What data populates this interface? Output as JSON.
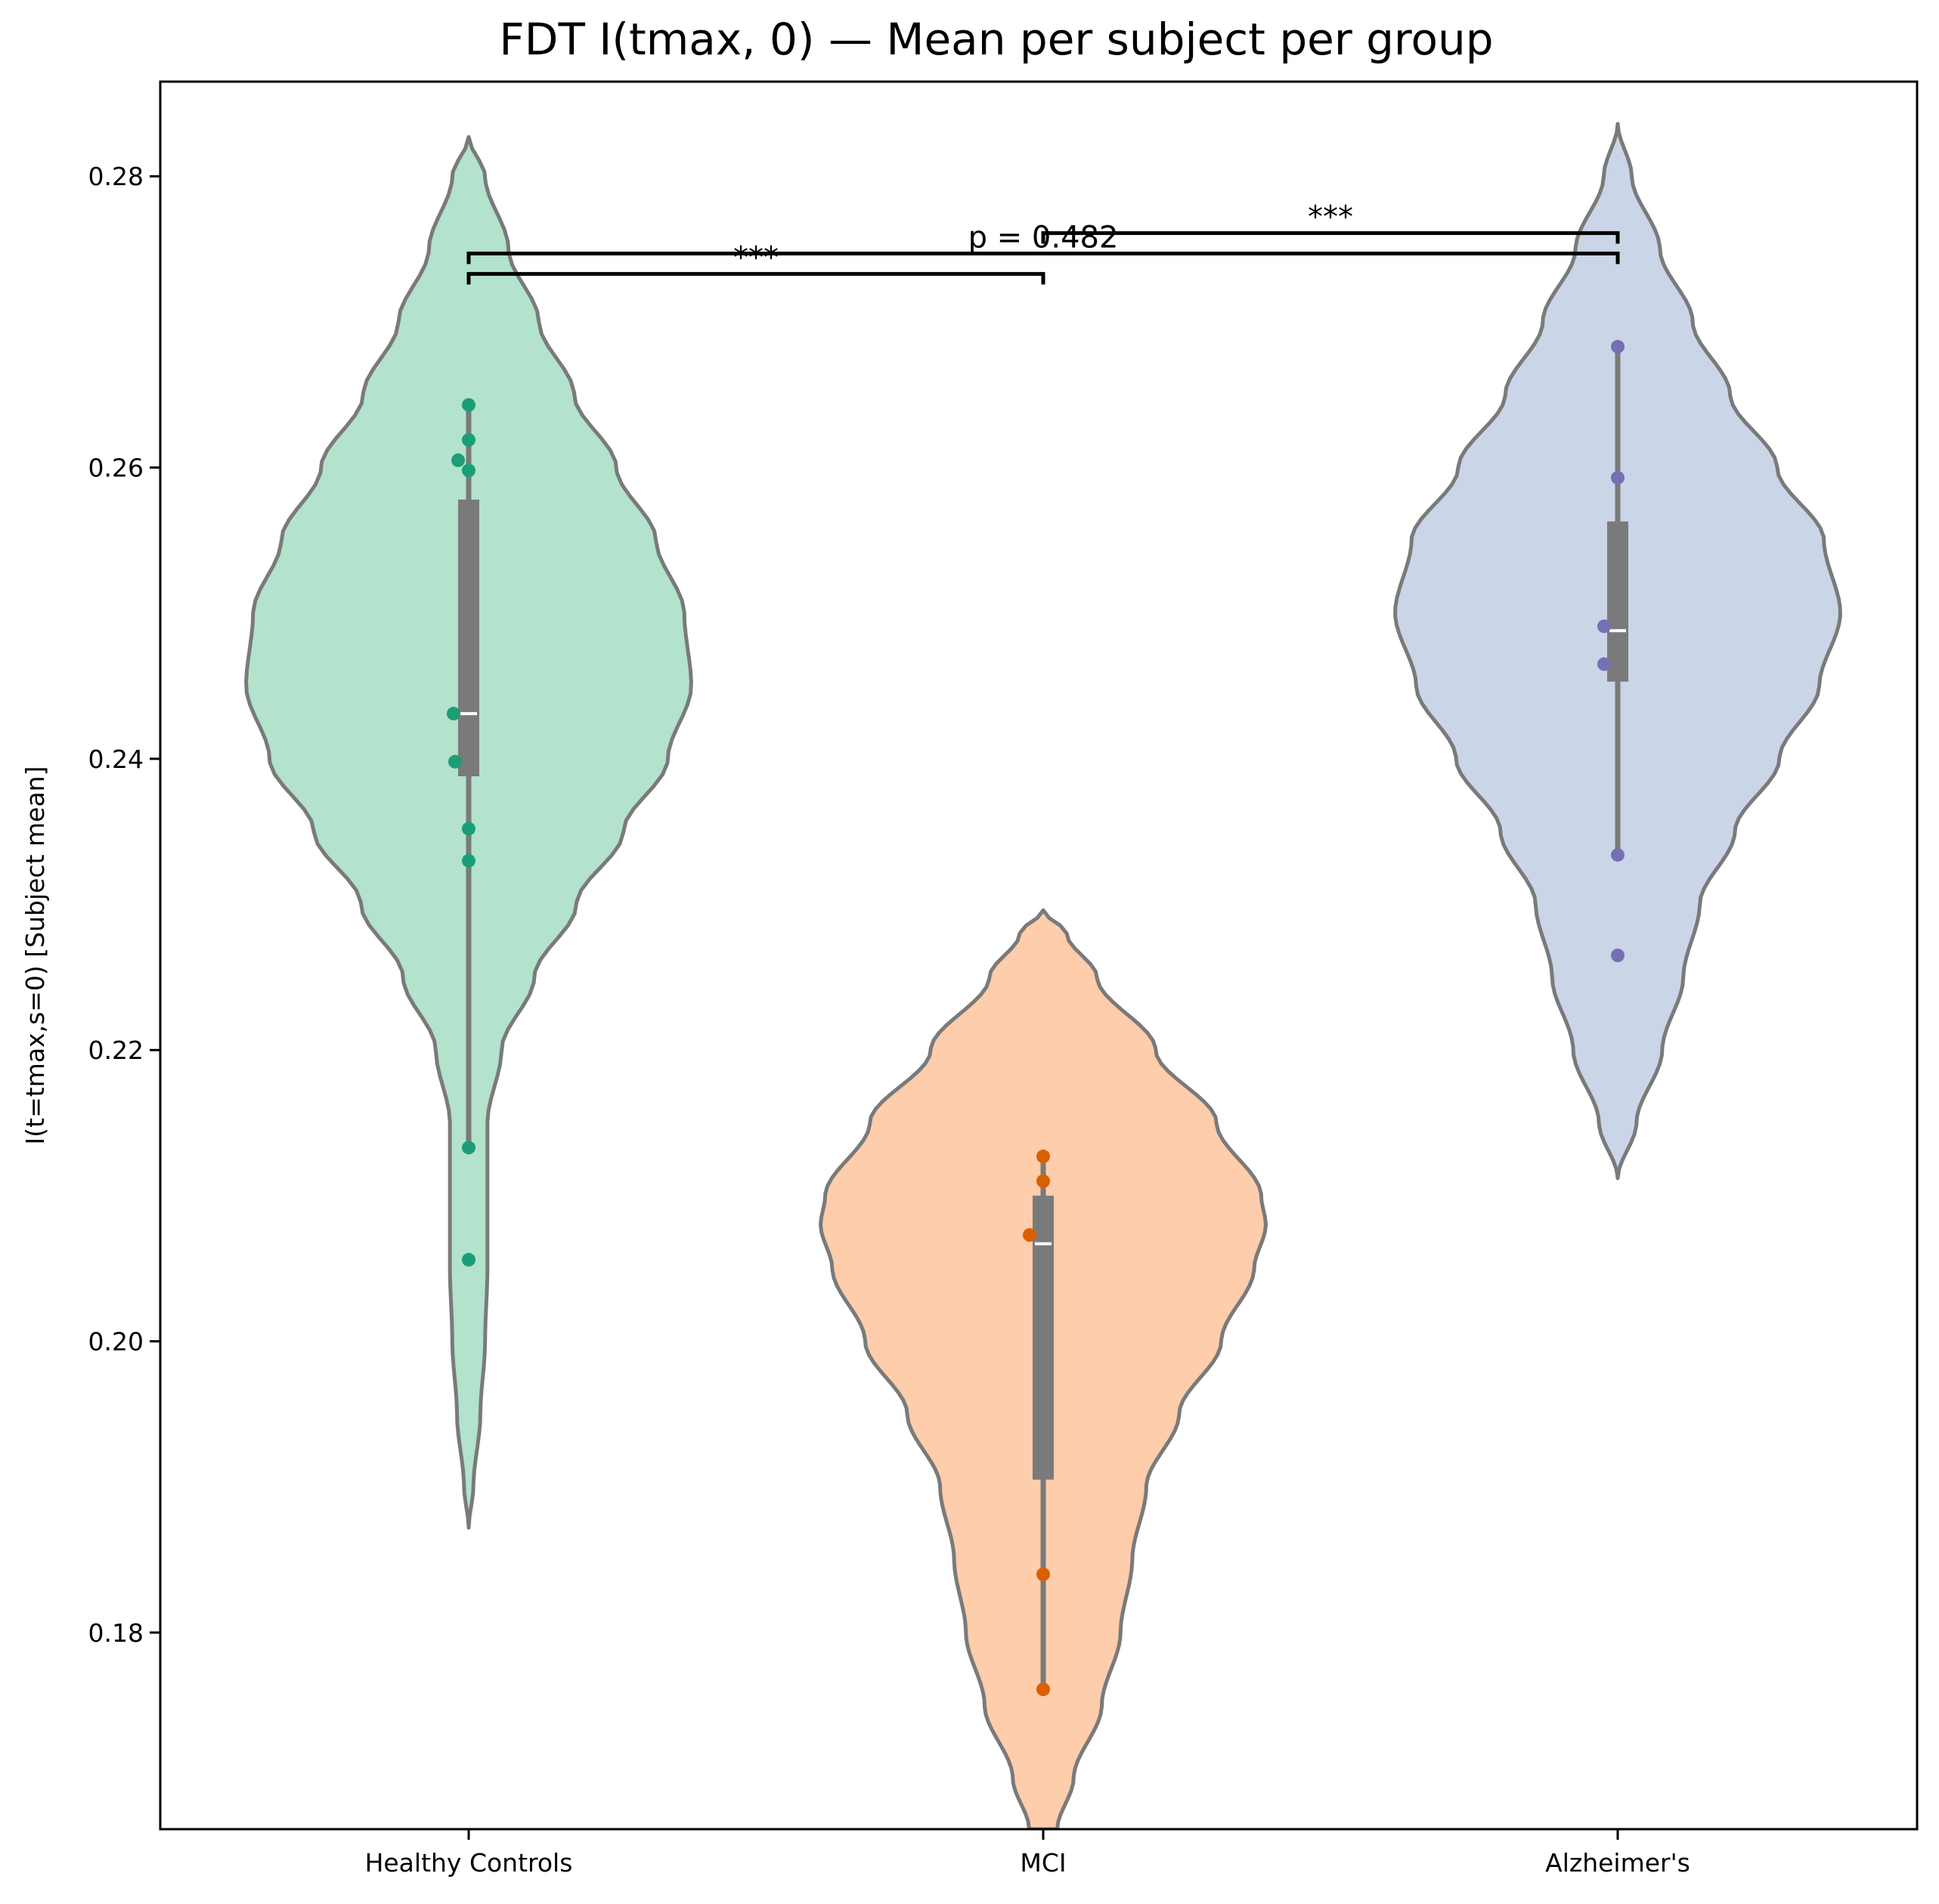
{
  "chart_data": {
    "type": "violin",
    "title": "FDT I(tmax, 0) — Mean per subject per group",
    "xlabel": "",
    "ylabel": "I(t=tmax,s=0) [Subject mean]",
    "ylim": [
      0.1665,
      0.2865
    ],
    "yticks": [
      0.18,
      0.2,
      0.22,
      0.24,
      0.26,
      0.28
    ],
    "ytick_labels": [
      "0.18",
      "0.20",
      "0.22",
      "0.24",
      "0.26",
      "0.28"
    ],
    "categories": [
      "Healthy Controls",
      "MCI",
      "Alzheimer's"
    ],
    "grid": false,
    "series": [
      {
        "fill": "#b3e2cd",
        "point_color": "#1b9e77",
        "points": [
          0.2643,
          0.2619,
          0.2605,
          0.2598,
          0.2431,
          0.2398,
          0.2352,
          0.233,
          0.2133,
          0.2056
        ],
        "box": {
          "q1": 0.2388,
          "median": 0.2431,
          "q3": 0.2578,
          "whisker_low": 0.2133,
          "whisker_high": 0.2643
        },
        "violin_range": [
          0.1872,
          0.2827
        ],
        "violin_profile": [
          [
            0.1872,
            0.0
          ],
          [
            0.19,
            0.02
          ],
          [
            0.195,
            0.05
          ],
          [
            0.2,
            0.07
          ],
          [
            0.205,
            0.08
          ],
          [
            0.21,
            0.08
          ],
          [
            0.213,
            0.08
          ],
          [
            0.215,
            0.08
          ],
          [
            0.22,
            0.14
          ],
          [
            0.225,
            0.28
          ],
          [
            0.23,
            0.46
          ],
          [
            0.235,
            0.66
          ],
          [
            0.24,
            0.85
          ],
          [
            0.245,
            0.95
          ],
          [
            0.25,
            0.92
          ],
          [
            0.255,
            0.8
          ],
          [
            0.26,
            0.63
          ],
          [
            0.265,
            0.45
          ],
          [
            0.27,
            0.3
          ],
          [
            0.275,
            0.17
          ],
          [
            0.28,
            0.07
          ],
          [
            0.2827,
            0.0
          ]
        ]
      },
      {
        "fill": "#fdcdac",
        "point_color": "#d95f02",
        "points": [
          0.2127,
          0.211,
          0.2073,
          0.184,
          0.1761
        ],
        "box": {
          "q1": 0.1905,
          "median": 0.2067,
          "q3": 0.21,
          "whisker_low": 0.1761,
          "whisker_high": 0.2127
        },
        "violin_range": [
          0.1665,
          0.2296
        ],
        "violin_profile": [
          [
            0.1665,
            0.06
          ],
          [
            0.17,
            0.13
          ],
          [
            0.175,
            0.25
          ],
          [
            0.18,
            0.33
          ],
          [
            0.185,
            0.38
          ],
          [
            0.19,
            0.44
          ],
          [
            0.195,
            0.58
          ],
          [
            0.2,
            0.76
          ],
          [
            0.205,
            0.9
          ],
          [
            0.208,
            0.95
          ],
          [
            0.21,
            0.93
          ],
          [
            0.215,
            0.74
          ],
          [
            0.22,
            0.48
          ],
          [
            0.225,
            0.23
          ],
          [
            0.228,
            0.1
          ],
          [
            0.2296,
            0.0
          ]
        ]
      },
      {
        "fill": "#cbd5e8",
        "point_color": "#7570b3",
        "points": [
          0.2683,
          0.2593,
          0.2491,
          0.2465,
          0.2334,
          0.2265
        ],
        "box": {
          "q1": 0.2453,
          "median": 0.2488,
          "q3": 0.2563,
          "whisker_low": 0.2334,
          "whisker_high": 0.2683
        },
        "violin_range": [
          0.2112,
          0.2836
        ],
        "violin_profile": [
          [
            0.2112,
            0.0
          ],
          [
            0.215,
            0.08
          ],
          [
            0.22,
            0.19
          ],
          [
            0.225,
            0.28
          ],
          [
            0.23,
            0.35
          ],
          [
            0.235,
            0.5
          ],
          [
            0.24,
            0.69
          ],
          [
            0.245,
            0.86
          ],
          [
            0.25,
            0.95
          ],
          [
            0.255,
            0.88
          ],
          [
            0.26,
            0.68
          ],
          [
            0.265,
            0.48
          ],
          [
            0.27,
            0.32
          ],
          [
            0.275,
            0.18
          ],
          [
            0.28,
            0.06
          ],
          [
            0.2836,
            0.0
          ]
        ]
      }
    ],
    "annotations": [
      {
        "from": 0,
        "to": 1,
        "y": 0.2733,
        "label": "***"
      },
      {
        "from": 0,
        "to": 2,
        "y": 0.2747,
        "label": "p = 0.482"
      },
      {
        "from": 1,
        "to": 2,
        "y": 0.2761,
        "label": "***"
      }
    ]
  }
}
